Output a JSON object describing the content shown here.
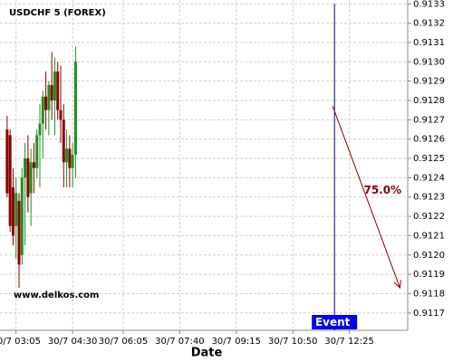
{
  "chart_data": {
    "type": "candlestick",
    "title": "USDCHF 5 (FOREX)",
    "watermark": "www.delkos.com",
    "xlabel": "Date",
    "xlim": [
      158,
      843
    ],
    "xticks": [
      {
        "value": 185,
        "label": "30/7 03:05"
      },
      {
        "value": 280,
        "label": "30/7 04:30"
      },
      {
        "value": 365,
        "label": "30/7 06:05"
      },
      {
        "value": 460,
        "label": "30/7 07:40"
      },
      {
        "value": 555,
        "label": "30/7 09:15"
      },
      {
        "value": 650,
        "label": "30/7 10:50"
      },
      {
        "value": 745,
        "label": "30/7 12:25"
      }
    ],
    "ylim": [
      0.91161,
      0.91332
    ],
    "yticks": [
      0.9117,
      0.9118,
      0.9119,
      {
        "value": 0.912,
        "label": "0.9120"
      },
      0.9121,
      0.9122,
      0.9123,
      0.9124,
      0.9125,
      0.9126,
      0.9127,
      0.9128,
      0.9129,
      {
        "value": 0.913,
        "label": "0.9130"
      },
      0.9131,
      0.9132,
      0.9133
    ],
    "grid": true,
    "up_color": "#1f8f1f",
    "down_color": "#8b0000",
    "x": [
      170,
      175,
      180,
      185,
      190,
      195,
      200,
      205,
      210,
      215,
      220,
      225,
      230,
      235,
      240,
      245,
      250,
      255,
      260,
      265,
      270,
      275,
      280,
      285
    ],
    "open": [
      0.91265,
      0.91262,
      0.91235,
      0.91215,
      0.91228,
      0.912,
      0.9124,
      0.9125,
      0.91232,
      0.91248,
      0.91245,
      0.91262,
      0.91268,
      0.91282,
      0.91275,
      0.91288,
      0.9128,
      0.91295,
      0.91275,
      0.9127,
      0.91248,
      0.91255,
      0.91245,
      0.91252
    ],
    "high": [
      0.91272,
      0.91265,
      0.91245,
      0.9124,
      0.91232,
      0.91245,
      0.91258,
      0.91262,
      0.91255,
      0.91258,
      0.91265,
      0.91278,
      0.91285,
      0.91295,
      0.9129,
      0.91305,
      0.91302,
      0.913,
      0.91298,
      0.91278,
      0.91265,
      0.91262,
      0.91258,
      0.91308
    ],
    "low": [
      0.9123,
      0.91212,
      0.91205,
      0.91198,
      0.91183,
      0.91195,
      0.91205,
      0.91222,
      0.91215,
      0.91232,
      0.9124,
      0.91235,
      0.9125,
      0.91265,
      0.91262,
      0.9127,
      0.91262,
      0.9127,
      0.91258,
      0.91235,
      0.91235,
      0.91235,
      0.91235,
      0.9124
    ],
    "close": [
      0.91232,
      0.91215,
      0.9121,
      0.91232,
      0.91195,
      0.9124,
      0.9125,
      0.9123,
      0.91248,
      0.91245,
      0.91262,
      0.91268,
      0.91282,
      0.91275,
      0.91288,
      0.9128,
      0.91295,
      0.91275,
      0.9127,
      0.91248,
      0.91255,
      0.91245,
      0.91252,
      0.913
    ],
    "event": {
      "x": 720,
      "label": "Event",
      "color": "#000080"
    },
    "projection": {
      "x": [
        717,
        830
      ],
      "y": [
        0.91277,
        0.91183
      ],
      "label": "75.0%",
      "color": "#8b0000"
    }
  }
}
